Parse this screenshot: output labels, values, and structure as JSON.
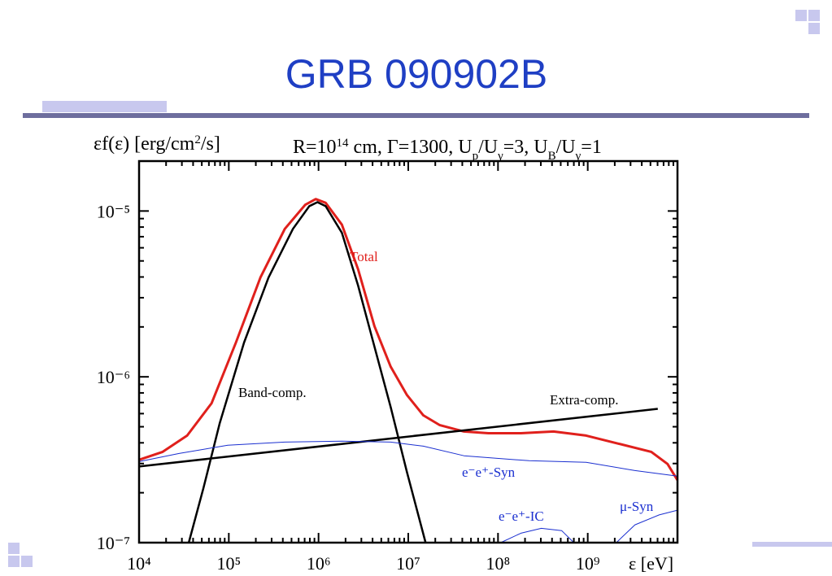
{
  "slide_title": "GRB 090902B",
  "chart_data": {
    "type": "line",
    "subtitle": [
      {
        "text": "R=10"
      },
      {
        "text": "14",
        "shift": "super"
      },
      {
        "text": " cm, Γ=1300, U"
      },
      {
        "text": "p",
        "shift": "sub"
      },
      {
        "text": "/U"
      },
      {
        "text": "γ",
        "shift": "sub"
      },
      {
        "text": "=3, U"
      },
      {
        "text": "B",
        "shift": "sub"
      },
      {
        "text": "/U"
      },
      {
        "text": "γ",
        "shift": "sub"
      },
      {
        "text": "=1"
      }
    ],
    "y_label": [
      {
        "text": "εf(ε) [erg/cm"
      },
      {
        "text": "2",
        "shift": "super"
      },
      {
        "text": "/s]"
      }
    ],
    "x_label": "ε [eV]",
    "xscale": "log",
    "yscale": "log",
    "xlim": [
      10000,
      10000000000
    ],
    "ylim": [
      1e-07,
      2e-05
    ],
    "xticks": [
      {
        "value": 10000,
        "label": "10⁴"
      },
      {
        "value": 100000,
        "label": "10⁵"
      },
      {
        "value": 1000000,
        "label": "10⁶"
      },
      {
        "value": 10000000,
        "label": "10⁷"
      },
      {
        "value": 100000000,
        "label": "10⁸"
      },
      {
        "value": 1000000000,
        "label": "10⁹"
      }
    ],
    "yticks": [
      {
        "value": 1e-07,
        "label": "10⁻⁷"
      },
      {
        "value": 1e-06,
        "label": "10⁻⁶"
      },
      {
        "value": 1e-05,
        "label": "10⁻⁵"
      }
    ],
    "series": [
      {
        "name": "Total",
        "color": "#e0201c",
        "width": 3,
        "x": [
          10000,
          18300,
          34300,
          64300,
          120000,
          225000,
          421000,
          710000,
          931000,
          1200000,
          1820000,
          2760000,
          4200000,
          6370000,
          9680000,
          14700000,
          22300000,
          41800000,
          78200000,
          180000000,
          416000000,
          959000000,
          2210000000,
          5110000000,
          7750000000,
          10000000000
        ],
        "values": [
          3.16e-07,
          3.53e-07,
          4.42e-07,
          6.93e-07,
          1.61e-06,
          3.97e-06,
          7.8e-06,
          1.09e-05,
          1.18e-05,
          1.12e-05,
          8.27e-06,
          4.45e-06,
          2.02e-06,
          1.15e-06,
          7.76e-07,
          5.86e-07,
          5.12e-07,
          4.68e-07,
          4.57e-07,
          4.57e-07,
          4.68e-07,
          4.42e-07,
          3.95e-07,
          3.53e-07,
          2.98e-07,
          2.38e-07
        ]
      },
      {
        "name": "Band-comp.",
        "color": "#000000",
        "width": 2.5,
        "x": [
          35800,
          52100,
          79100,
          148000,
          277000,
          519000,
          788000,
          971000,
          1200000,
          1820000,
          2760000,
          4200000,
          6370000,
          9680000,
          15600000
        ],
        "values": [
          1e-07,
          2.13e-07,
          5.24e-07,
          1.61e-06,
          3.97e-06,
          7.8e-06,
          1.07e-05,
          1.13e-05,
          1.07e-05,
          7.38e-06,
          3.55e-06,
          1.52e-06,
          6.56e-07,
          2.66e-07,
          1e-07
        ]
      },
      {
        "name": "Extra-comp.",
        "color": "#000000",
        "width": 2.5,
        "x": [
          10000,
          6030000000
        ],
        "values": [
          2.88e-07,
          6.41e-07
        ]
      },
      {
        "name": "e⁻e⁺-Syn",
        "color": "#1a2fd0",
        "width": 1,
        "x": [
          10000,
          27900,
          97500,
          421000,
          1820000,
          6370000,
          14700000,
          41800000,
          222000000,
          959000000,
          3360000000,
          10000000000
        ],
        "values": [
          3.08e-07,
          3.45e-07,
          3.87e-07,
          4.04e-07,
          4.09e-07,
          4.04e-07,
          3.82e-07,
          3.34e-07,
          3.12e-07,
          3.05e-07,
          2.72e-07,
          2.52e-07
        ]
      },
      {
        "name": "e⁻e⁺-IC",
        "color": "#1a2fd0",
        "width": 1,
        "x": [
          107000000,
          180000000,
          304000000,
          513000000,
          701000000
        ],
        "values": [
          1e-07,
          1.14e-07,
          1.22e-07,
          1.18e-07,
          1e-07
        ]
      },
      {
        "name": "μ-Syn",
        "color": "#1a2fd0",
        "width": 1,
        "x": [
          2080000000,
          3360000000,
          6250000000,
          10000000000
        ],
        "values": [
          1e-07,
          1.28e-07,
          1.47e-07,
          1.57e-07
        ]
      }
    ]
  }
}
